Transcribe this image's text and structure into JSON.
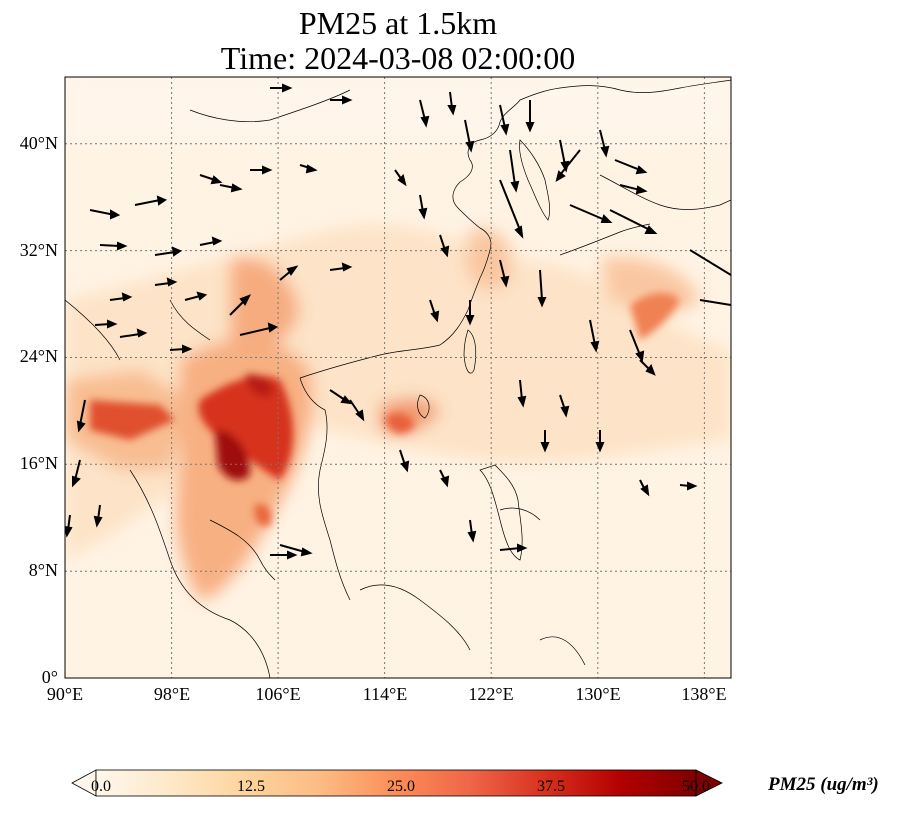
{
  "title": {
    "line1": "PM25 at 1.5km",
    "line2": "Time: 2024-03-08 02:00:00"
  },
  "map": {
    "lon_range": [
      90,
      140
    ],
    "lat_range": [
      0,
      45
    ],
    "lon_ticks": [
      "90°E",
      "98°E",
      "106°E",
      "114°E",
      "122°E",
      "130°E",
      "138°E"
    ],
    "lat_ticks": [
      "0°",
      "8°N",
      "16°N",
      "24°N",
      "32°N",
      "40°N"
    ],
    "gridlines": "dotted",
    "coastlines": true,
    "wind_vectors": true,
    "colormap": "OrRd"
  },
  "colorbar": {
    "label": "PM25 (ug/m³)",
    "ticks": [
      "0.0",
      "12.5",
      "25.0",
      "37.5",
      "50.0"
    ],
    "min": 0,
    "max": 50,
    "extend": "both",
    "colors": [
      "#fff7ec",
      "#fee8c8",
      "#fdd49e",
      "#fdbb84",
      "#fc8d59",
      "#ef6548",
      "#d7301f",
      "#b30000",
      "#7f0000"
    ]
  }
}
